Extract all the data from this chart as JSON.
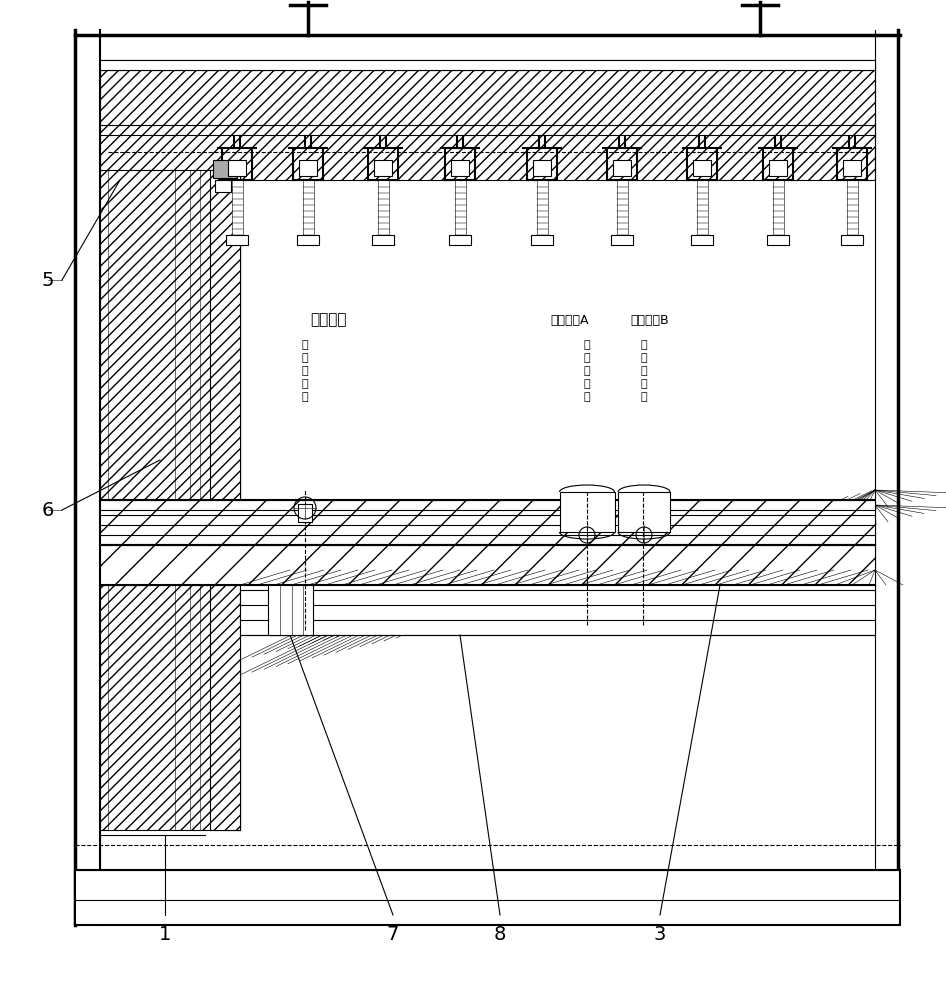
{
  "bg_color": "#ffffff",
  "text_low": "低出料位",
  "text_high_A": "高出料位A",
  "text_high_B": "高出料位B",
  "text_center_v": [
    "出",
    "钓",
    "中",
    "心",
    "线"
  ],
  "text_center_v2": [
    "出",
    "钓",
    "中",
    "心线"
  ],
  "label_1": "1",
  "label_3": "3",
  "label_5": "5",
  "label_6": "6",
  "label_7": "7",
  "label_8": "8"
}
